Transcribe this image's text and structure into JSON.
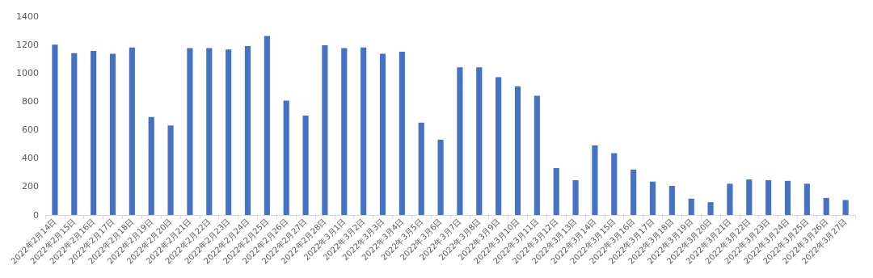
{
  "chart_data": {
    "type": "bar",
    "categories": [
      "2022年2月14日",
      "2022年2月15日",
      "2022年2月16日",
      "2022年2月17日",
      "2022年2月18日",
      "2022年2月19日",
      "2022年2月20日",
      "2022年2月21日",
      "2022年2月22日",
      "2022年2月23日",
      "2022年2月24日",
      "2022年2月25日",
      "2022年2月26日",
      "2022年2月27日",
      "2022年2月28日",
      "2022年3月1日",
      "2022年3月2日",
      "2022年3月3日",
      "2022年3月4日",
      "2022年3月5日",
      "2022年3月6日",
      "2022年3月7日",
      "2022年3月8日",
      "2022年3月9日",
      "2022年3月10日",
      "2022年3月11日",
      "2022年3月12日",
      "2022年3月13日",
      "2022年3月14日",
      "2022年3月15日",
      "2022年3月16日",
      "2022年3月17日",
      "2022年3月18日",
      "2022年3月19日",
      "2022年3月20日",
      "2022年3月21日",
      "2022年3月22日",
      "2022年3月23日",
      "2022年3月24日",
      "2022年3月25日",
      "2022年3月26日",
      "2022年3月27日"
    ],
    "values": [
      1200,
      1140,
      1155,
      1135,
      1180,
      690,
      630,
      1175,
      1175,
      1165,
      1190,
      1260,
      805,
      700,
      1195,
      1175,
      1180,
      1135,
      1150,
      650,
      530,
      1040,
      1040,
      970,
      905,
      840,
      330,
      245,
      490,
      435,
      320,
      235,
      205,
      115,
      90,
      220,
      250,
      245,
      240,
      220,
      120,
      105
    ],
    "color": "#4472c4",
    "ylim": [
      0,
      1400
    ],
    "yticks": [
      0,
      200,
      400,
      600,
      800,
      1000,
      1200,
      1400
    ],
    "grid": false
  }
}
